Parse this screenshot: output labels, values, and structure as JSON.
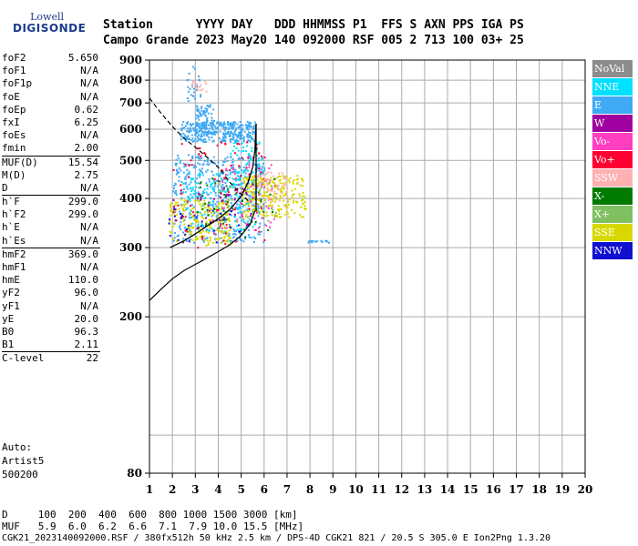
{
  "logo": {
    "line1": "Lowell",
    "line2": "DIGISONDE"
  },
  "header": {
    "row1": "Station      YYYY DAY   DDD HHMMSS P1  FFS S AXN PPS IGA PS",
    "row2": "Campo Grande 2023 May20 140 092000 RSF 005 2 713 100 03+ 25"
  },
  "params": [
    {
      "k": "foF2",
      "v": "5.650"
    },
    {
      "k": "foF1",
      "v": "N/A"
    },
    {
      "k": "foF1p",
      "v": "N/A"
    },
    {
      "k": "foE",
      "v": "N/A"
    },
    {
      "k": "foEp",
      "v": "0.62"
    },
    {
      "k": "fxI",
      "v": "6.25"
    },
    {
      "k": "foEs",
      "v": "N/A"
    },
    {
      "k": "fmin",
      "v": "2.00"
    },
    {
      "k": "MUF(D)",
      "v": "15.54",
      "sep": true
    },
    {
      "k": "M(D)",
      "v": "2.75"
    },
    {
      "k": "D",
      "v": "N/A"
    },
    {
      "k": "h`F",
      "v": "299.0",
      "sep": true
    },
    {
      "k": "h`F2",
      "v": "299.0"
    },
    {
      "k": "h`E",
      "v": "N/A"
    },
    {
      "k": "h`Es",
      "v": "N/A"
    },
    {
      "k": "hmF2",
      "v": "369.0",
      "sep": true
    },
    {
      "k": "hmF1",
      "v": "N/A"
    },
    {
      "k": "hmE",
      "v": "110.0"
    },
    {
      "k": "yF2",
      "v": "96.0"
    },
    {
      "k": "yF1",
      "v": "N/A"
    },
    {
      "k": "yE",
      "v": "20.0"
    },
    {
      "k": "B0",
      "v": "96.3"
    },
    {
      "k": "B1",
      "v": "2.11"
    },
    {
      "k": "C-level",
      "v": "22",
      "sep": true
    }
  ],
  "auto": {
    "line1": "Auto:",
    "line2": "Artist5",
    "line3": "500200"
  },
  "legend": [
    {
      "label": "NoVal",
      "color": "#8c8c8c"
    },
    {
      "label": "NNE",
      "color": "#00e0ff"
    },
    {
      "label": "E",
      "color": "#3fa9f5"
    },
    {
      "label": "W",
      "color": "#a0009f"
    },
    {
      "label": "Vo-",
      "color": "#ff3fbf"
    },
    {
      "label": "Vo+",
      "color": "#ff0033"
    },
    {
      "label": "SSW",
      "color": "#ffb0b0"
    },
    {
      "label": "X-",
      "color": "#007a00"
    },
    {
      "label": "X+",
      "color": "#80c060"
    },
    {
      "label": "SSE",
      "color": "#d8d800"
    },
    {
      "label": "NNW",
      "color": "#1010d0"
    }
  ],
  "bottom": {
    "d_row": "D     100  200  400  600  800 1000 1500 3000 [km]",
    "muf_row": "MUF   5.9  6.0  6.2  6.6  7.1  7.9 10.0 15.5 [MHz]",
    "footer": "CGK21_2023140092000.RSF / 380fx512h 50 kHz 2.5 km / DPS-4D CGK21 821 / 20.5 S 305.0 E Ion2Png 1.3.20"
  },
  "chart_data": {
    "type": "scatter",
    "title": "",
    "xlabel": "",
    "ylabel": "",
    "xlim": [
      1,
      20
    ],
    "ylim": [
      80,
      900
    ],
    "xticks": [
      1,
      2,
      3,
      4,
      5,
      6,
      7,
      8,
      9,
      10,
      11,
      12,
      13,
      14,
      15,
      16,
      17,
      18,
      19,
      20
    ],
    "yticks": [
      80,
      200,
      300,
      400,
      500,
      600,
      700,
      800,
      900
    ],
    "yscale": "log",
    "grid": true,
    "legend_position": "right",
    "series": [
      {
        "color_key": "E",
        "clusters": [
          {
            "x": [
              2.3,
              5.6
            ],
            "y": [
              560,
              630
            ],
            "n": 350
          },
          {
            "x": [
              3.0,
              3.8
            ],
            "y": [
              590,
              700
            ],
            "n": 90
          },
          {
            "x": [
              2.0,
              6.0
            ],
            "y": [
              310,
              520
            ],
            "n": 500
          },
          {
            "x": [
              2.6,
              3.2
            ],
            "y": [
              690,
              870
            ],
            "n": 25
          },
          {
            "x": [
              7.9,
              8.8
            ],
            "y": [
              310,
              314
            ],
            "n": 20
          }
        ]
      },
      {
        "color_key": "NNE",
        "clusters": [
          {
            "x": [
              2.5,
              5.6
            ],
            "y": [
              330,
              470
            ],
            "n": 150
          },
          {
            "x": [
              4.5,
              5.8
            ],
            "y": [
              420,
              560
            ],
            "n": 60
          }
        ]
      },
      {
        "color_key": "SSE",
        "clusters": [
          {
            "x": [
              1.8,
              4.5
            ],
            "y": [
              305,
              400
            ],
            "n": 200
          },
          {
            "x": [
              5.0,
              7.8
            ],
            "y": [
              360,
              460
            ],
            "n": 250
          }
        ]
      },
      {
        "color_key": "Vo+",
        "clusters": [
          {
            "x": [
              2.0,
              6.0
            ],
            "y": [
              300,
              560
            ],
            "n": 90
          }
        ]
      },
      {
        "color_key": "Vo-",
        "clusters": [
          {
            "x": [
              4.0,
              6.5
            ],
            "y": [
              330,
              490
            ],
            "n": 60
          }
        ]
      },
      {
        "color_key": "SSW",
        "clusters": [
          {
            "x": [
              5.5,
              7.0
            ],
            "y": [
              380,
              470
            ],
            "n": 60
          },
          {
            "x": [
              2.8,
              3.5
            ],
            "y": [
              750,
              800
            ],
            "n": 15
          }
        ]
      },
      {
        "color_key": "X-",
        "clusters": [
          {
            "x": [
              3.0,
              6.5
            ],
            "y": [
              320,
              460
            ],
            "n": 50
          }
        ]
      },
      {
        "color_key": "X+",
        "clusters": [
          {
            "x": [
              4.0,
              6.5
            ],
            "y": [
              350,
              450
            ],
            "n": 40
          }
        ]
      },
      {
        "color_key": "W",
        "clusters": [
          {
            "x": [
              2.0,
              5.5
            ],
            "y": [
              340,
              430
            ],
            "n": 40
          }
        ]
      },
      {
        "color_key": "NNW",
        "clusters": [
          {
            "x": [
              1.8,
              5.0
            ],
            "y": [
              310,
              380
            ],
            "n": 30
          }
        ]
      }
    ],
    "trace_solid": [
      {
        "x": 1.9,
        "y": 300
      },
      {
        "x": 2.5,
        "y": 312
      },
      {
        "x": 3.0,
        "y": 325
      },
      {
        "x": 3.5,
        "y": 340
      },
      {
        "x": 4.0,
        "y": 355
      },
      {
        "x": 4.5,
        "y": 375
      },
      {
        "x": 5.0,
        "y": 405
      },
      {
        "x": 5.3,
        "y": 440
      },
      {
        "x": 5.5,
        "y": 480
      },
      {
        "x": 5.6,
        "y": 530
      },
      {
        "x": 5.65,
        "y": 620
      }
    ],
    "trace_vertical": {
      "x": 5.65,
      "y": [
        370,
        620
      ]
    },
    "profile_solid": [
      {
        "x": 1.0,
        "y": 220
      },
      {
        "x": 1.5,
        "y": 235
      },
      {
        "x": 2.0,
        "y": 250
      },
      {
        "x": 2.5,
        "y": 262
      },
      {
        "x": 3.0,
        "y": 272
      },
      {
        "x": 3.5,
        "y": 282
      },
      {
        "x": 4.0,
        "y": 293
      },
      {
        "x": 4.5,
        "y": 305
      },
      {
        "x": 5.0,
        "y": 322
      },
      {
        "x": 5.4,
        "y": 345
      },
      {
        "x": 5.6,
        "y": 372
      }
    ],
    "muf_dashed": [
      {
        "x": 1.0,
        "y": 720
      },
      {
        "x": 1.5,
        "y": 660
      },
      {
        "x": 2.0,
        "y": 610
      },
      {
        "x": 2.5,
        "y": 570
      },
      {
        "x": 3.0,
        "y": 540
      },
      {
        "x": 3.5,
        "y": 510
      },
      {
        "x": 4.0,
        "y": 480
      },
      {
        "x": 4.5,
        "y": 440
      },
      {
        "x": 5.0,
        "y": 410
      },
      {
        "x": 5.4,
        "y": 390
      }
    ]
  }
}
